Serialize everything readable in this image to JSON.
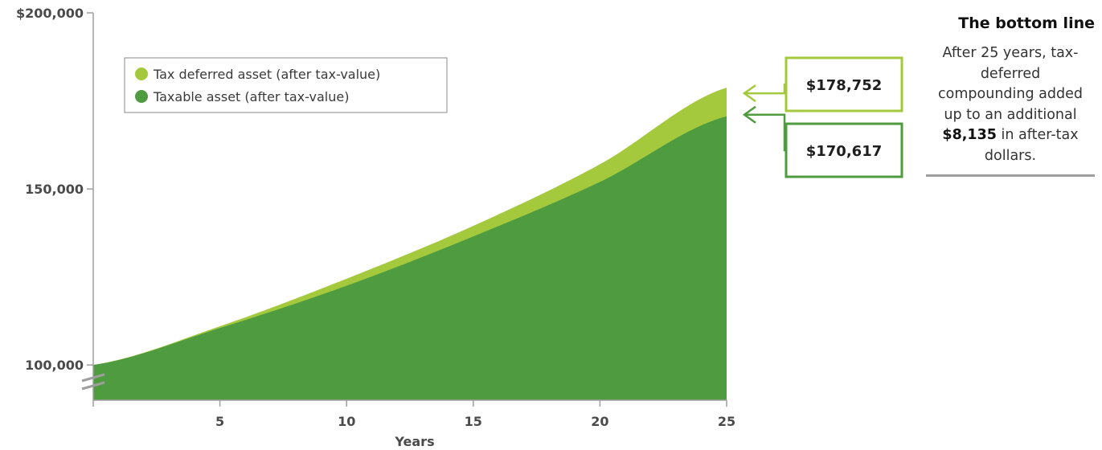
{
  "chart_data": {
    "type": "area",
    "xlabel": "Years",
    "ylabel": "",
    "xlim": [
      0,
      25
    ],
    "ylim": [
      90000,
      200000
    ],
    "x_ticks": [
      5,
      10,
      15,
      20,
      25
    ],
    "y_ticks": [
      {
        "value": 100000,
        "label": "100,000"
      },
      {
        "value": 150000,
        "label": "150,000"
      },
      {
        "value": 200000,
        "label": "$200,000"
      }
    ],
    "axis_break": true,
    "grid": false,
    "legend_position": "top-left",
    "x": [
      0,
      5,
      10,
      15,
      20,
      25
    ],
    "series": [
      {
        "name": "Tax deferred asset (after tax-value)",
        "color": "#a4c93d",
        "values": [
          100000,
          111000,
          124500,
          139500,
          157000,
          178752
        ]
      },
      {
        "name": "Taxable asset (after tax-value)",
        "color": "#4f9b3f",
        "values": [
          100000,
          110500,
          122500,
          136500,
          152000,
          170617
        ]
      }
    ],
    "annotations": [
      {
        "text": "$178,752",
        "series": 0,
        "border_color": "#a4c93d"
      },
      {
        "text": "$170,617",
        "series": 1,
        "border_color": "#4f9b3f"
      }
    ]
  },
  "sidebar": {
    "title": "The bottom line",
    "text_before": "After 25 years, tax-deferred compounding added up to an additional ",
    "highlight": "$8,135",
    "text_after": " in after-tax dollars."
  }
}
